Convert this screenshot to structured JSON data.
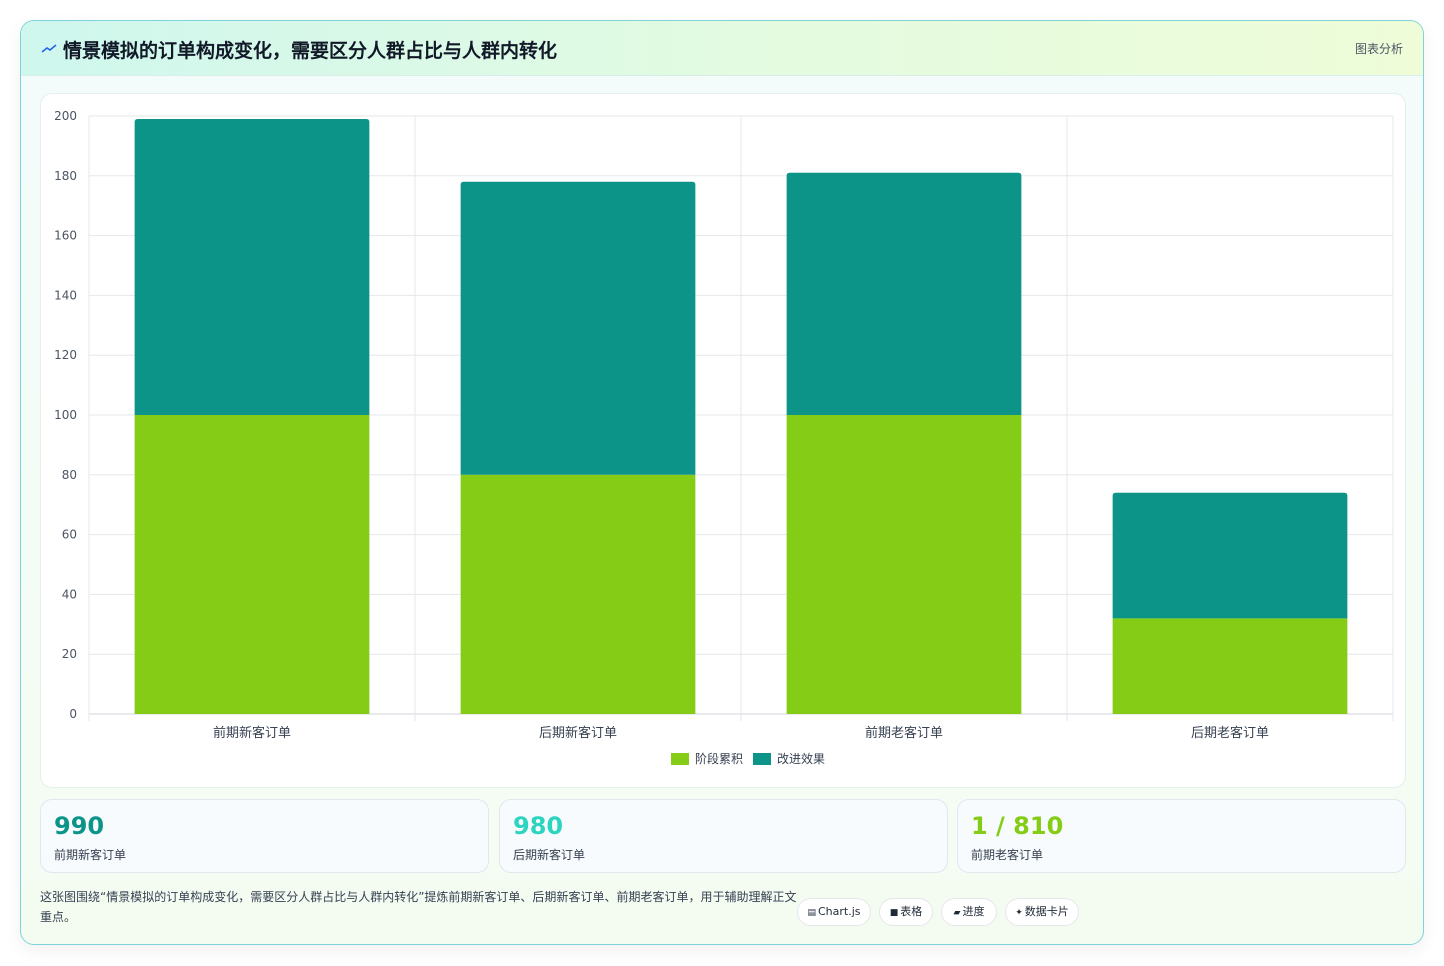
{
  "header": {
    "title": "情景模拟的订单构成变化，需要区分人群占比与人群内转化",
    "link": "图表分析",
    "icon": "trend-line-icon"
  },
  "chart_data": {
    "type": "bar",
    "stacked": true,
    "categories": [
      "前期新客订单",
      "后期新客订单",
      "前期老客订单",
      "后期老客订单"
    ],
    "series": [
      {
        "name": "阶段累积",
        "values": [
          100,
          80,
          100,
          32
        ],
        "color": "#84cc16"
      },
      {
        "name": "改进效果",
        "values": [
          99,
          98,
          81,
          42
        ],
        "color": "#0d9488"
      }
    ],
    "ylim": [
      0,
      200
    ],
    "yticks": [
      0,
      20,
      40,
      60,
      80,
      100,
      120,
      140,
      160,
      180,
      200
    ],
    "grid": true,
    "legend": "bottom"
  },
  "stats": [
    {
      "value": "990",
      "label": "前期新客订单",
      "color": "#0d9488"
    },
    {
      "value": "980",
      "label": "后期新客订单",
      "color": "#2dd4bf"
    },
    {
      "value": "1 / 810",
      "label": "前期老客订单",
      "color": "#84cc16"
    }
  ],
  "footer": {
    "description": "这张图围绕“情景模拟的订单构成变化，需要区分人群占比与人群内转化”提炼前期新客订单、后期新客订单、前期老客订单，用于辅助理解正文重点。",
    "tags": [
      {
        "label": "Chart.js",
        "icon": "chart-icon",
        "glyph": "▤"
      },
      {
        "label": "表格",
        "icon": "table-icon",
        "glyph": "■"
      },
      {
        "label": "进度",
        "icon": "progress-icon",
        "glyph": "▰"
      },
      {
        "label": "数据卡片",
        "icon": "card-icon",
        "glyph": "✦"
      }
    ]
  }
}
